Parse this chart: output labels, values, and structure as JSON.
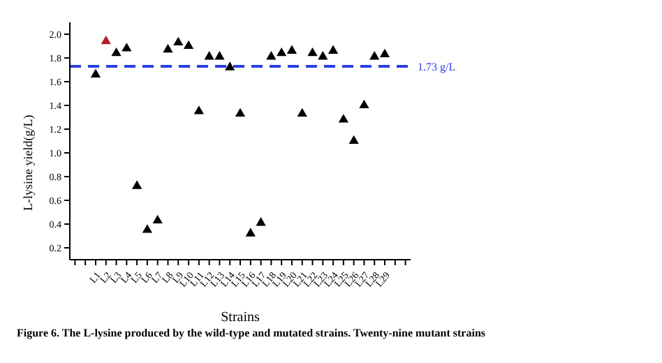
{
  "chart_data": {
    "type": "scatter",
    "xlabel": "Strains",
    "ylabel": "L-lysine yield(g/L)",
    "categories": [
      "L1",
      "L2",
      "L3",
      "L4",
      "L5",
      "L6",
      "L7",
      "L8",
      "L9",
      "L10",
      "L11",
      "L12",
      "L13",
      "L14",
      "L15",
      "L16",
      "L17",
      "L18",
      "L19",
      "L20",
      "L21",
      "L22",
      "L23",
      "L24",
      "L25",
      "L26",
      "L27",
      "L28",
      "L29"
    ],
    "values": [
      1.66,
      1.94,
      1.84,
      1.88,
      0.72,
      0.35,
      0.43,
      1.87,
      1.93,
      1.9,
      1.35,
      1.81,
      1.81,
      1.72,
      1.33,
      0.32,
      0.41,
      1.81,
      1.84,
      1.86,
      1.33,
      1.84,
      1.81,
      1.86,
      1.28,
      1.1,
      1.4,
      1.81,
      1.83
    ],
    "colors": [
      "#000000",
      "#b01c24",
      "#000000",
      "#000000",
      "#000000",
      "#000000",
      "#000000",
      "#000000",
      "#000000",
      "#000000",
      "#000000",
      "#000000",
      "#000000",
      "#000000",
      "#000000",
      "#000000",
      "#000000",
      "#000000",
      "#000000",
      "#000000",
      "#000000",
      "#000000",
      "#000000",
      "#000000",
      "#000000",
      "#000000",
      "#000000",
      "#000000",
      "#000000"
    ],
    "marker": "triangle",
    "ylim": [
      0.1,
      2.1
    ],
    "yticks": [
      0.2,
      0.4,
      0.6,
      0.8,
      {
        "value": 1,
        "label": "1.0"
      },
      1.2,
      1.4,
      1.6,
      1.8,
      {
        "value": 2,
        "label": "2.0"
      }
    ],
    "ref_lines": [
      {
        "axis": "y",
        "value": 1.73,
        "label": "1.73 g/L",
        "color": "#2a3fe0",
        "line_style": "dashed"
      }
    ],
    "grid": false,
    "annotations": [
      "Figure 6. The L-lysine produced by the wild-type and mutated strains. Twenty-nine mutant strains"
    ]
  }
}
